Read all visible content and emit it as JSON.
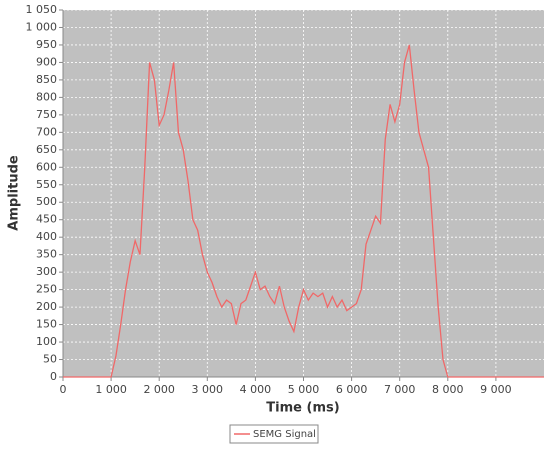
{
  "chart_data": {
    "type": "line",
    "x_label": "Time (ms)",
    "y_label": "Amplitude",
    "x": [
      0,
      100,
      200,
      300,
      400,
      500,
      600,
      700,
      800,
      900,
      1000,
      1100,
      1200,
      1300,
      1400,
      1500,
      1600,
      1700,
      1800,
      1900,
      2000,
      2100,
      2200,
      2300,
      2400,
      2500,
      2600,
      2700,
      2800,
      2900,
      3000,
      3100,
      3200,
      3300,
      3400,
      3500,
      3600,
      3700,
      3800,
      3900,
      4000,
      4100,
      4200,
      4300,
      4400,
      4500,
      4600,
      4700,
      4800,
      4900,
      5000,
      5100,
      5200,
      5300,
      5400,
      5500,
      5600,
      5700,
      5800,
      5900,
      6000,
      6100,
      6200,
      6300,
      6400,
      6500,
      6600,
      6700,
      6800,
      6900,
      7000,
      7100,
      7200,
      7300,
      7400,
      7500,
      7600,
      7700,
      7800,
      7900,
      8000,
      8100,
      8200,
      8300,
      8400,
      8500,
      8600,
      8700,
      8800,
      8900,
      9000,
      9100,
      9200,
      9300,
      9400,
      9500,
      9600,
      9700,
      9800,
      9900,
      10000
    ],
    "series": [
      {
        "name": "SEMG Signal",
        "color": "#f06868",
        "values": [
          0,
          0,
          0,
          0,
          0,
          0,
          0,
          0,
          0,
          0,
          0,
          60,
          150,
          250,
          330,
          390,
          350,
          600,
          900,
          850,
          720,
          750,
          820,
          900,
          700,
          650,
          560,
          450,
          420,
          350,
          300,
          270,
          230,
          200,
          220,
          210,
          150,
          210,
          220,
          260,
          300,
          250,
          260,
          230,
          210,
          260,
          200,
          160,
          130,
          200,
          250,
          220,
          240,
          230,
          240,
          200,
          230,
          200,
          220,
          190,
          200,
          210,
          250,
          380,
          420,
          460,
          440,
          680,
          780,
          730,
          780,
          900,
          950,
          820,
          700,
          650,
          600,
          400,
          200,
          50,
          0,
          0,
          0,
          0,
          0,
          0,
          0,
          0,
          0,
          0,
          0,
          0,
          0,
          0,
          0,
          0,
          0,
          0,
          0,
          0,
          0
        ]
      }
    ],
    "xlim": [
      0,
      10000
    ],
    "xticks": [
      0,
      {
        "value": 1000,
        "label": "1 000"
      },
      {
        "value": 2000,
        "label": "2 000"
      },
      {
        "value": 3000,
        "label": "3 000"
      },
      {
        "value": 4000,
        "label": "4 000"
      },
      {
        "value": 5000,
        "label": "5 000"
      },
      {
        "value": 6000,
        "label": "6 000"
      },
      {
        "value": 7000,
        "label": "7 000"
      },
      {
        "value": 8000,
        "label": "8 000"
      },
      {
        "value": 9000,
        "label": "9 000"
      }
    ],
    "ylim": [
      0,
      1050
    ],
    "yticks": [
      0,
      50,
      100,
      150,
      200,
      250,
      300,
      350,
      400,
      450,
      500,
      550,
      600,
      650,
      700,
      750,
      800,
      850,
      900,
      950,
      {
        "value": 1000,
        "label": "1 000"
      },
      {
        "value": 1050,
        "label": "1 050"
      }
    ],
    "grid": true
  }
}
